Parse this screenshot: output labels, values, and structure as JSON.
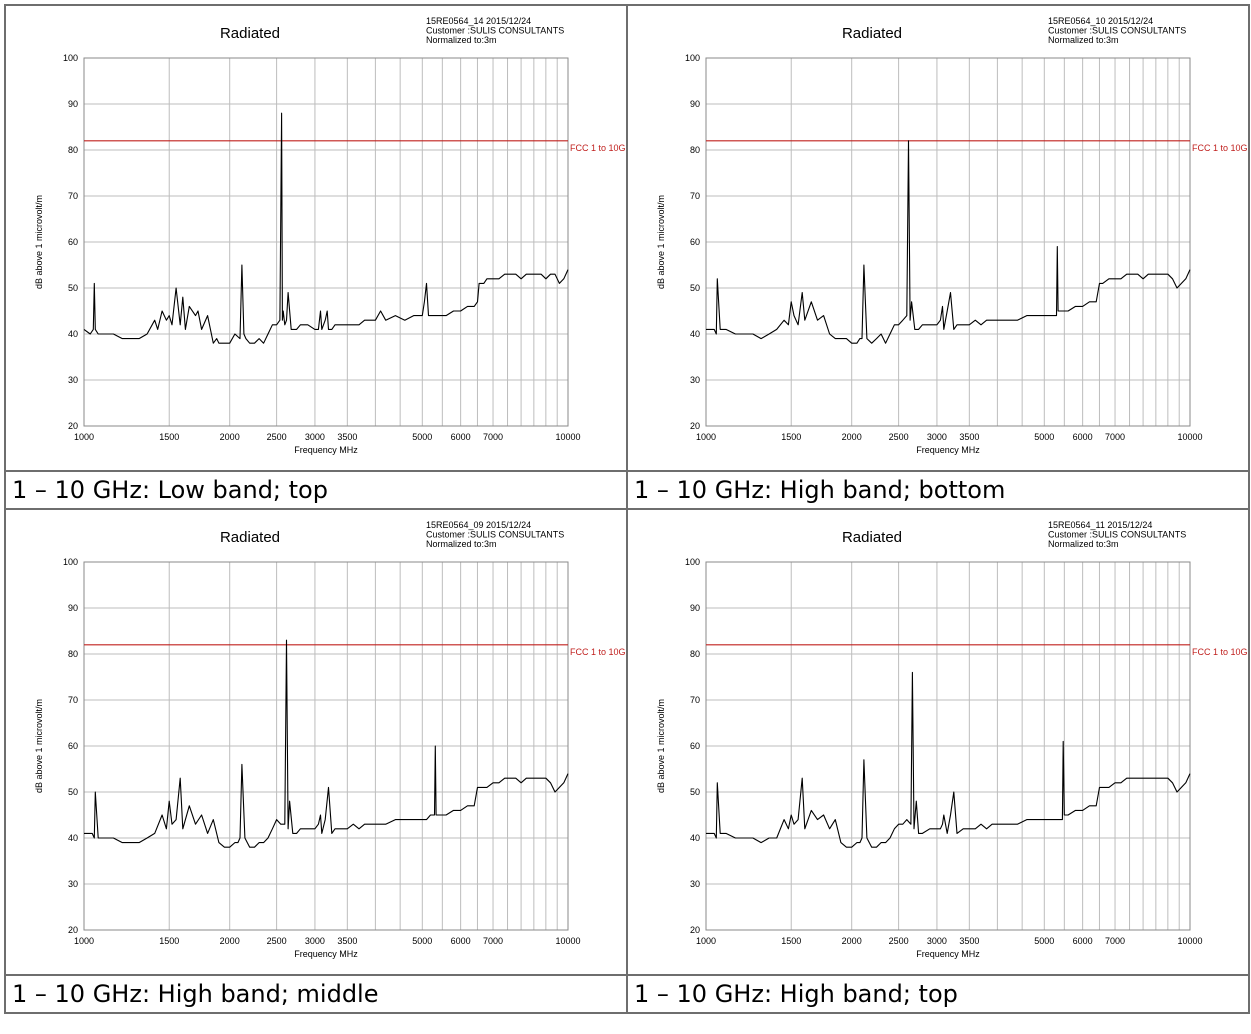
{
  "colors": {
    "limit": "#c0201e",
    "trace": "#000000",
    "grid": "#bdbdbd",
    "border": "#6e6e6e"
  },
  "panels": [
    {
      "caption": "1 – 10 GHz: Low band; top"
    },
    {
      "caption": "1 – 10 GHz: High band; bottom"
    },
    {
      "caption": "1 – 10 GHz: High band; middle"
    },
    {
      "caption": "1 – 10 GHz: High band; top"
    }
  ],
  "chart_data": [
    {
      "type": "line",
      "title": "Radiated",
      "info": [
        "15RE0564_14 2015/12/24",
        "Customer :SULIS CONSULTANTS",
        "Normalized to:3m"
      ],
      "xlabel": "Frequency MHz",
      "ylabel": "dB above 1 microvolt/m",
      "xscale": "log",
      "xlim": [
        1000,
        10000
      ],
      "ylim": [
        20,
        100
      ],
      "x_ticks": [
        1000,
        1500,
        2000,
        2500,
        3000,
        3500,
        5000,
        6000,
        7000,
        10000
      ],
      "y_ticks": [
        20,
        30,
        40,
        50,
        60,
        70,
        80,
        90,
        100
      ],
      "grid": true,
      "limit": {
        "name": "FCC 1 to 10G",
        "value": 82
      },
      "series": [
        {
          "x": [
            1000,
            1030,
            1045,
            1050,
            1055,
            1070,
            1100,
            1150,
            1200,
            1250,
            1300,
            1350,
            1400,
            1420,
            1450,
            1480,
            1500,
            1520,
            1550,
            1580,
            1600,
            1620,
            1650,
            1700,
            1720,
            1750,
            1800,
            1850,
            1880,
            1900,
            1950,
            2000,
            2050,
            2100,
            2120,
            2140,
            2160,
            2200,
            2250,
            2300,
            2350,
            2400,
            2450,
            2500,
            2540,
            2560,
            2570,
            2580,
            2600,
            2620,
            2640,
            2680,
            2700,
            2750,
            2800,
            2900,
            3000,
            3050,
            3080,
            3100,
            3150,
            3180,
            3200,
            3250,
            3300,
            3400,
            3500,
            3600,
            3700,
            3800,
            3900,
            4000,
            4100,
            4200,
            4400,
            4600,
            4800,
            5000,
            5050,
            5100,
            5150,
            5200,
            5400,
            5600,
            5800,
            6000,
            6200,
            6400,
            6500,
            6550,
            6600,
            6700,
            6800,
            7000,
            7200,
            7400,
            7600,
            7800,
            8000,
            8200,
            8400,
            8600,
            8800,
            9000,
            9200,
            9400,
            9600,
            9800,
            10000
          ],
          "y": [
            41,
            40,
            41,
            51,
            41,
            40,
            40,
            40,
            39,
            39,
            39,
            40,
            43,
            41,
            45,
            43,
            44,
            42,
            50,
            42,
            48,
            41,
            46,
            44,
            45,
            41,
            44,
            38,
            39,
            38,
            38,
            38,
            40,
            39,
            55,
            40,
            39,
            38,
            38,
            39,
            38,
            40,
            42,
            42,
            43,
            88,
            43,
            45,
            42,
            43,
            49,
            41,
            41,
            41,
            42,
            42,
            41,
            41,
            45,
            41,
            43,
            45,
            41,
            41,
            42,
            42,
            42,
            42,
            42,
            43,
            43,
            43,
            45,
            43,
            44,
            43,
            44,
            44,
            47,
            51,
            44,
            44,
            44,
            44,
            45,
            45,
            46,
            46,
            47,
            51,
            51,
            51,
            52,
            52,
            52,
            53,
            53,
            53,
            52,
            53,
            53,
            53,
            53,
            52,
            53,
            53,
            51,
            52,
            54
          ]
        }
      ]
    },
    {
      "type": "line",
      "title": "Radiated",
      "info": [
        "15RE0564_10 2015/12/24",
        "Customer :SULIS CONSULTANTS",
        "Normalized to:3m"
      ],
      "xlabel": "Frequency MHz",
      "ylabel": "dB above 1 microvolt/m",
      "xscale": "log",
      "xlim": [
        1000,
        10000
      ],
      "ylim": [
        20,
        100
      ],
      "x_ticks": [
        1000,
        1500,
        2000,
        2500,
        3000,
        3500,
        5000,
        6000,
        7000,
        10000
      ],
      "y_ticks": [
        20,
        30,
        40,
        50,
        60,
        70,
        80,
        90,
        100
      ],
      "grid": true,
      "limit": {
        "name": "FCC 1 to 10G",
        "value": 82
      },
      "series": [
        {
          "x": [
            1000,
            1040,
            1050,
            1055,
            1070,
            1100,
            1150,
            1200,
            1250,
            1300,
            1350,
            1400,
            1450,
            1480,
            1500,
            1520,
            1550,
            1580,
            1600,
            1650,
            1700,
            1750,
            1800,
            1850,
            1900,
            1950,
            2000,
            2050,
            2080,
            2100,
            2120,
            2150,
            2200,
            2250,
            2300,
            2350,
            2400,
            2450,
            2500,
            2550,
            2600,
            2620,
            2640,
            2660,
            2700,
            2750,
            2800,
            2900,
            3000,
            3050,
            3080,
            3100,
            3150,
            3200,
            3250,
            3300,
            3400,
            3500,
            3600,
            3700,
            3800,
            3900,
            4000,
            4200,
            4400,
            4600,
            4800,
            5000,
            5100,
            5200,
            5300,
            5320,
            5340,
            5400,
            5600,
            5800,
            6000,
            6200,
            6400,
            6500,
            6600,
            6800,
            7000,
            7200,
            7400,
            7600,
            7800,
            8000,
            8200,
            8400,
            8600,
            8800,
            9000,
            9200,
            9400,
            9600,
            9800,
            10000
          ],
          "y": [
            41,
            41,
            40,
            52,
            41,
            41,
            40,
            40,
            40,
            39,
            40,
            41,
            43,
            42,
            47,
            44,
            42,
            49,
            43,
            47,
            43,
            44,
            40,
            39,
            39,
            39,
            38,
            38,
            39,
            39,
            55,
            39,
            38,
            39,
            40,
            38,
            40,
            42,
            42,
            43,
            44,
            82,
            43,
            47,
            41,
            41,
            42,
            42,
            42,
            43,
            46,
            41,
            45,
            49,
            41,
            42,
            42,
            42,
            43,
            42,
            43,
            43,
            43,
            43,
            43,
            44,
            44,
            44,
            44,
            44,
            44,
            59,
            45,
            45,
            45,
            46,
            46,
            47,
            47,
            51,
            51,
            52,
            52,
            52,
            53,
            53,
            53,
            52,
            53,
            53,
            53,
            53,
            53,
            52,
            50,
            51,
            52,
            54
          ]
        }
      ]
    },
    {
      "type": "line",
      "title": "Radiated",
      "info": [
        "15RE0564_09 2015/12/24",
        "Customer :SULIS CONSULTANTS",
        "Normalized to:3m"
      ],
      "xlabel": "Frequency MHz",
      "ylabel": "dB above 1 microvolt/m",
      "xscale": "log",
      "xlim": [
        1000,
        10000
      ],
      "ylim": [
        20,
        100
      ],
      "x_ticks": [
        1000,
        1500,
        2000,
        2500,
        3000,
        3500,
        5000,
        6000,
        7000,
        10000
      ],
      "y_ticks": [
        20,
        30,
        40,
        50,
        60,
        70,
        80,
        90,
        100
      ],
      "grid": true,
      "limit": {
        "name": "FCC 1 to 10G",
        "value": 82
      },
      "series": [
        {
          "x": [
            1000,
            1040,
            1050,
            1055,
            1070,
            1100,
            1150,
            1200,
            1250,
            1300,
            1350,
            1400,
            1450,
            1480,
            1500,
            1520,
            1550,
            1580,
            1600,
            1650,
            1700,
            1750,
            1800,
            1850,
            1900,
            1950,
            2000,
            2050,
            2080,
            2100,
            2120,
            2150,
            2200,
            2250,
            2300,
            2350,
            2400,
            2450,
            2500,
            2550,
            2600,
            2620,
            2640,
            2660,
            2700,
            2750,
            2800,
            2900,
            3000,
            3050,
            3080,
            3100,
            3150,
            3200,
            3250,
            3300,
            3400,
            3500,
            3600,
            3700,
            3800,
            3900,
            4000,
            4200,
            4400,
            4600,
            4800,
            5000,
            5100,
            5200,
            5300,
            5320,
            5340,
            5400,
            5600,
            5800,
            6000,
            6200,
            6400,
            6500,
            6600,
            6800,
            7000,
            7200,
            7400,
            7600,
            7800,
            8000,
            8200,
            8400,
            8600,
            8800,
            9000,
            9200,
            9400,
            9600,
            9800,
            10000
          ],
          "y": [
            41,
            41,
            40,
            50,
            40,
            40,
            40,
            39,
            39,
            39,
            40,
            41,
            45,
            42,
            48,
            43,
            44,
            53,
            42,
            47,
            43,
            45,
            41,
            44,
            39,
            38,
            38,
            39,
            39,
            40,
            56,
            40,
            38,
            38,
            39,
            39,
            40,
            42,
            44,
            43,
            43,
            83,
            42,
            48,
            41,
            41,
            42,
            42,
            42,
            43,
            45,
            41,
            44,
            51,
            41,
            42,
            42,
            42,
            43,
            42,
            43,
            43,
            43,
            43,
            44,
            44,
            44,
            44,
            44,
            45,
            45,
            60,
            45,
            45,
            45,
            46,
            46,
            47,
            47,
            51,
            51,
            51,
            52,
            52,
            53,
            53,
            53,
            52,
            53,
            53,
            53,
            53,
            53,
            52,
            50,
            51,
            52,
            54
          ]
        }
      ]
    },
    {
      "type": "line",
      "title": "Radiated",
      "info": [
        "15RE0564_11 2015/12/24",
        "Customer :SULIS CONSULTANTS",
        "Normalized to:3m"
      ],
      "xlabel": "Frequency MHz",
      "ylabel": "dB above 1 microvolt/m",
      "xscale": "log",
      "xlim": [
        1000,
        10000
      ],
      "ylim": [
        20,
        100
      ],
      "x_ticks": [
        1000,
        1500,
        2000,
        2500,
        3000,
        3500,
        5000,
        6000,
        7000,
        10000
      ],
      "y_ticks": [
        20,
        30,
        40,
        50,
        60,
        70,
        80,
        90,
        100
      ],
      "grid": true,
      "limit": {
        "name": "FCC 1 to 10G",
        "value": 82
      },
      "series": [
        {
          "x": [
            1000,
            1040,
            1050,
            1055,
            1070,
            1100,
            1150,
            1200,
            1250,
            1300,
            1350,
            1400,
            1450,
            1480,
            1500,
            1520,
            1550,
            1580,
            1600,
            1650,
            1700,
            1750,
            1800,
            1850,
            1900,
            1950,
            2000,
            2050,
            2080,
            2100,
            2120,
            2150,
            2200,
            2250,
            2300,
            2350,
            2400,
            2450,
            2500,
            2550,
            2600,
            2650,
            2670,
            2690,
            2720,
            2750,
            2800,
            2900,
            3000,
            3050,
            3080,
            3100,
            3150,
            3200,
            3250,
            3300,
            3400,
            3500,
            3600,
            3700,
            3800,
            3900,
            4000,
            4200,
            4400,
            4600,
            4800,
            5000,
            5100,
            5200,
            5400,
            5450,
            5470,
            5500,
            5600,
            5800,
            6000,
            6200,
            6400,
            6500,
            6600,
            6800,
            7000,
            7200,
            7400,
            7600,
            7800,
            8000,
            8200,
            8400,
            8600,
            8800,
            9000,
            9200,
            9400,
            9600,
            9800,
            10000
          ],
          "y": [
            41,
            41,
            40,
            52,
            41,
            41,
            40,
            40,
            40,
            39,
            40,
            40,
            44,
            42,
            45,
            43,
            44,
            53,
            42,
            46,
            44,
            45,
            42,
            44,
            39,
            38,
            38,
            39,
            39,
            40,
            57,
            40,
            38,
            38,
            39,
            39,
            40,
            42,
            43,
            43,
            44,
            43,
            76,
            42,
            48,
            41,
            41,
            42,
            42,
            42,
            43,
            45,
            41,
            45,
            50,
            41,
            42,
            42,
            42,
            43,
            42,
            43,
            43,
            43,
            43,
            44,
            44,
            44,
            44,
            44,
            44,
            44,
            61,
            45,
            45,
            46,
            46,
            47,
            47,
            51,
            51,
            51,
            52,
            52,
            53,
            53,
            53,
            53,
            53,
            53,
            53,
            53,
            53,
            52,
            50,
            51,
            52,
            54
          ]
        }
      ]
    }
  ]
}
